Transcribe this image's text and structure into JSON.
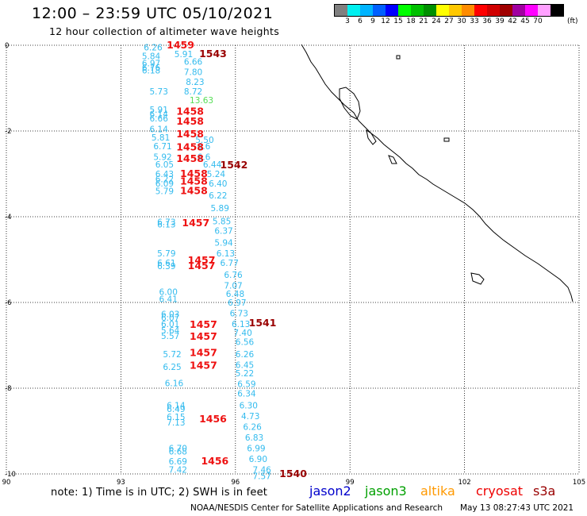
{
  "header": {
    "title": "12:00 – 23:59 UTC 05/10/2021",
    "subtitle": "12 hour collection of altimeter wave heights"
  },
  "legend": {
    "unit": "(ft)",
    "swatches": [
      {
        "label": "",
        "color": "#808080"
      },
      {
        "label": "3",
        "color": "#00f0f0"
      },
      {
        "label": "6",
        "color": "#00b4ff"
      },
      {
        "label": "9",
        "color": "#0060ff"
      },
      {
        "label": "12",
        "color": "#0000ff"
      },
      {
        "label": "15",
        "color": "#00ff00"
      },
      {
        "label": "18",
        "color": "#00c000"
      },
      {
        "label": "21",
        "color": "#009000"
      },
      {
        "label": "24",
        "color": "#ffff00"
      },
      {
        "label": "27",
        "color": "#ffc800"
      },
      {
        "label": "30",
        "color": "#ff8c00"
      },
      {
        "label": "33",
        "color": "#ff0000"
      },
      {
        "label": "36",
        "color": "#d00000"
      },
      {
        "label": "39",
        "color": "#a00000"
      },
      {
        "label": "42",
        "color": "#a000a0"
      },
      {
        "label": "45",
        "color": "#ff00ff"
      },
      {
        "label": "70",
        "color": "#ffa0ff"
      },
      {
        "label": "",
        "color": "#000000"
      }
    ]
  },
  "axes": {
    "x_ticks": [
      "90",
      "93",
      "96",
      "99",
      "102",
      "105"
    ],
    "y_ticks": [
      "0",
      "-2",
      "-4",
      "-6",
      "-8",
      "-10"
    ]
  },
  "observations": [
    {
      "lon": 93.6,
      "lat": -0.05,
      "text": "6.26",
      "color": "#33bbee"
    },
    {
      "lon": 93.55,
      "lat": -0.25,
      "text": "5.84",
      "color": "#33bbee"
    },
    {
      "lon": 93.55,
      "lat": -0.42,
      "text": "6.97",
      "color": "#33bbee"
    },
    {
      "lon": 93.55,
      "lat": -0.52,
      "text": "6.76",
      "color": "#33bbee"
    },
    {
      "lon": 93.55,
      "lat": -0.58,
      "text": "6.18",
      "color": "#33bbee"
    },
    {
      "lon": 94.4,
      "lat": -0.2,
      "text": "5.91",
      "color": "#33bbee"
    },
    {
      "lon": 94.65,
      "lat": -0.38,
      "text": "6.66",
      "color": "#33bbee"
    },
    {
      "lon": 94.65,
      "lat": -0.62,
      "text": "7.80",
      "color": "#33bbee"
    },
    {
      "lon": 94.7,
      "lat": -0.85,
      "text": "8.23",
      "color": "#33bbee"
    },
    {
      "lon": 93.75,
      "lat": -1.07,
      "text": "5.73",
      "color": "#33bbee"
    },
    {
      "lon": 94.65,
      "lat": -1.07,
      "text": "8.72",
      "color": "#33bbee"
    },
    {
      "lon": 94.8,
      "lat": -1.28,
      "text": "13.63",
      "color": "#55dd55"
    },
    {
      "lon": 93.75,
      "lat": -1.5,
      "text": "5.91",
      "color": "#33bbee"
    },
    {
      "lon": 93.75,
      "lat": -1.6,
      "text": "6.14",
      "color": "#33bbee"
    },
    {
      "lon": 93.75,
      "lat": -1.7,
      "text": "6.66",
      "color": "#33bbee"
    },
    {
      "lon": 93.75,
      "lat": -1.95,
      "text": "6.14",
      "color": "#33bbee"
    },
    {
      "lon": 93.8,
      "lat": -2.15,
      "text": "5.81",
      "color": "#33bbee"
    },
    {
      "lon": 93.85,
      "lat": -2.35,
      "text": "6.71",
      "color": "#33bbee"
    },
    {
      "lon": 94.95,
      "lat": -2.2,
      "text": "5.50",
      "color": "#33bbee"
    },
    {
      "lon": 95.0,
      "lat": -2.35,
      "text": "6.6",
      "color": "#33bbee"
    },
    {
      "lon": 93.85,
      "lat": -2.6,
      "text": "5.92",
      "color": "#33bbee"
    },
    {
      "lon": 95.0,
      "lat": -2.6,
      "text": "6.6",
      "color": "#33bbee"
    },
    {
      "lon": 93.9,
      "lat": -2.78,
      "text": "6.05",
      "color": "#33bbee"
    },
    {
      "lon": 95.15,
      "lat": -2.78,
      "text": "6.44",
      "color": "#33bbee"
    },
    {
      "lon": 93.9,
      "lat": -3.0,
      "text": "6.43",
      "color": "#33bbee"
    },
    {
      "lon": 95.25,
      "lat": -3.0,
      "text": "5.24",
      "color": "#33bbee"
    },
    {
      "lon": 93.9,
      "lat": -3.12,
      "text": "6.22",
      "color": "#33bbee"
    },
    {
      "lon": 93.9,
      "lat": -3.22,
      "text": "6.09",
      "color": "#33bbee"
    },
    {
      "lon": 95.3,
      "lat": -3.22,
      "text": "6.40",
      "color": "#33bbee"
    },
    {
      "lon": 93.9,
      "lat": -3.4,
      "text": "5.79",
      "color": "#33bbee"
    },
    {
      "lon": 95.3,
      "lat": -3.5,
      "text": "6.22",
      "color": "#33bbee"
    },
    {
      "lon": 95.35,
      "lat": -3.8,
      "text": "5.89",
      "color": "#33bbee"
    },
    {
      "lon": 93.95,
      "lat": -4.12,
      "text": "6.73",
      "color": "#33bbee"
    },
    {
      "lon": 93.95,
      "lat": -4.18,
      "text": "6.13",
      "color": "#33bbee"
    },
    {
      "lon": 95.4,
      "lat": -4.1,
      "text": "5.85",
      "color": "#33bbee"
    },
    {
      "lon": 95.45,
      "lat": -4.32,
      "text": "6.37",
      "color": "#33bbee"
    },
    {
      "lon": 95.45,
      "lat": -4.6,
      "text": "5.94",
      "color": "#33bbee"
    },
    {
      "lon": 93.95,
      "lat": -4.85,
      "text": "5.79",
      "color": "#33bbee"
    },
    {
      "lon": 95.5,
      "lat": -4.85,
      "text": "6.13",
      "color": "#33bbee"
    },
    {
      "lon": 93.95,
      "lat": -5.07,
      "text": "6.61",
      "color": "#33bbee"
    },
    {
      "lon": 93.95,
      "lat": -5.15,
      "text": "6.39",
      "color": "#33bbee"
    },
    {
      "lon": 95.6,
      "lat": -5.07,
      "text": "6.77",
      "color": "#33bbee"
    },
    {
      "lon": 95.7,
      "lat": -5.35,
      "text": "6.76",
      "color": "#33bbee"
    },
    {
      "lon": 95.7,
      "lat": -5.6,
      "text": "7.07",
      "color": "#33bbee"
    },
    {
      "lon": 94.0,
      "lat": -5.75,
      "text": "6.00",
      "color": "#33bbee"
    },
    {
      "lon": 95.75,
      "lat": -5.8,
      "text": "6.48",
      "color": "#33bbee"
    },
    {
      "lon": 94.0,
      "lat": -5.92,
      "text": "6.41",
      "color": "#33bbee"
    },
    {
      "lon": 95.8,
      "lat": -6.0,
      "text": "6.97",
      "color": "#33bbee"
    },
    {
      "lon": 94.05,
      "lat": -6.27,
      "text": "6.03",
      "color": "#33bbee"
    },
    {
      "lon": 94.05,
      "lat": -6.35,
      "text": "6.07",
      "color": "#33bbee"
    },
    {
      "lon": 95.85,
      "lat": -6.25,
      "text": "6.73",
      "color": "#33bbee"
    },
    {
      "lon": 94.05,
      "lat": -6.5,
      "text": "6.01",
      "color": "#33bbee"
    },
    {
      "lon": 95.9,
      "lat": -6.5,
      "text": "6.13",
      "color": "#33bbee"
    },
    {
      "lon": 94.05,
      "lat": -6.65,
      "text": "5.64",
      "color": "#33bbee"
    },
    {
      "lon": 95.95,
      "lat": -6.7,
      "text": "7.40",
      "color": "#33bbee"
    },
    {
      "lon": 94.05,
      "lat": -6.78,
      "text": "5.57",
      "color": "#33bbee"
    },
    {
      "lon": 96.0,
      "lat": -6.92,
      "text": "6.56",
      "color": "#33bbee"
    },
    {
      "lon": 94.1,
      "lat": -7.2,
      "text": "5.72",
      "color": "#33bbee"
    },
    {
      "lon": 96.0,
      "lat": -7.2,
      "text": "6.26",
      "color": "#33bbee"
    },
    {
      "lon": 96.0,
      "lat": -7.45,
      "text": "6.45",
      "color": "#33bbee"
    },
    {
      "lon": 94.1,
      "lat": -7.5,
      "text": "6.25",
      "color": "#33bbee"
    },
    {
      "lon": 96.0,
      "lat": -7.65,
      "text": "5.22",
      "color": "#33bbee"
    },
    {
      "lon": 94.15,
      "lat": -7.88,
      "text": "6.16",
      "color": "#33bbee"
    },
    {
      "lon": 96.05,
      "lat": -7.9,
      "text": "6.59",
      "color": "#33bbee"
    },
    {
      "lon": 96.05,
      "lat": -8.12,
      "text": "6.34",
      "color": "#33bbee"
    },
    {
      "lon": 94.2,
      "lat": -8.4,
      "text": "6.14",
      "color": "#33bbee"
    },
    {
      "lon": 94.2,
      "lat": -8.48,
      "text": "6.49",
      "color": "#33bbee"
    },
    {
      "lon": 96.1,
      "lat": -8.4,
      "text": "6.30",
      "color": "#33bbee"
    },
    {
      "lon": 94.2,
      "lat": -8.67,
      "text": "6.15",
      "color": "#33bbee"
    },
    {
      "lon": 96.15,
      "lat": -8.65,
      "text": "4.73",
      "color": "#33bbee"
    },
    {
      "lon": 94.2,
      "lat": -8.8,
      "text": "7.13",
      "color": "#33bbee"
    },
    {
      "lon": 96.2,
      "lat": -8.9,
      "text": "6.26",
      "color": "#33bbee"
    },
    {
      "lon": 96.25,
      "lat": -9.15,
      "text": "6.83",
      "color": "#33bbee"
    },
    {
      "lon": 94.25,
      "lat": -9.4,
      "text": "6.70",
      "color": "#33bbee"
    },
    {
      "lon": 94.25,
      "lat": -9.47,
      "text": "6.68",
      "color": "#33bbee"
    },
    {
      "lon": 96.3,
      "lat": -9.4,
      "text": "6.99",
      "color": "#33bbee"
    },
    {
      "lon": 94.25,
      "lat": -9.7,
      "text": "6.69",
      "color": "#33bbee"
    },
    {
      "lon": 96.35,
      "lat": -9.65,
      "text": "6.90",
      "color": "#33bbee"
    },
    {
      "lon": 94.25,
      "lat": -9.9,
      "text": "7.42",
      "color": "#33bbee"
    },
    {
      "lon": 96.45,
      "lat": -9.9,
      "text": "7.46",
      "color": "#33bbee"
    },
    {
      "lon": 96.45,
      "lat": -10.05,
      "text": "7.57",
      "color": "#33bbee"
    }
  ],
  "time_labels": [
    {
      "lon": 94.2,
      "lat": 0.0,
      "text": "1459",
      "color": "#ee1111"
    },
    {
      "lon": 95.05,
      "lat": -0.2,
      "text": "1543",
      "color": "#990000"
    },
    {
      "lon": 94.45,
      "lat": -1.55,
      "text": "1458",
      "color": "#ee1111"
    },
    {
      "lon": 94.45,
      "lat": -1.78,
      "text": "1458",
      "color": "#ee1111"
    },
    {
      "lon": 94.45,
      "lat": -2.07,
      "text": "1458",
      "color": "#ee1111"
    },
    {
      "lon": 94.45,
      "lat": -2.38,
      "text": "1458",
      "color": "#ee1111"
    },
    {
      "lon": 94.45,
      "lat": -2.65,
      "text": "1458",
      "color": "#ee1111"
    },
    {
      "lon": 95.6,
      "lat": -2.8,
      "text": "1542",
      "color": "#990000"
    },
    {
      "lon": 94.55,
      "lat": -3.0,
      "text": "1458",
      "color": "#ee1111"
    },
    {
      "lon": 94.55,
      "lat": -3.18,
      "text": "1458",
      "color": "#ee1111"
    },
    {
      "lon": 94.55,
      "lat": -3.4,
      "text": "1458",
      "color": "#ee1111"
    },
    {
      "lon": 94.6,
      "lat": -4.15,
      "text": "1457",
      "color": "#ee1111"
    },
    {
      "lon": 94.75,
      "lat": -5.02,
      "text": "1457",
      "color": "#ee1111"
    },
    {
      "lon": 94.75,
      "lat": -5.15,
      "text": "1457",
      "color": "#ee1111"
    },
    {
      "lon": 94.8,
      "lat": -6.52,
      "text": "1457",
      "color": "#ee1111"
    },
    {
      "lon": 96.35,
      "lat": -6.48,
      "text": "1541",
      "color": "#990000"
    },
    {
      "lon": 94.8,
      "lat": -6.8,
      "text": "1457",
      "color": "#ee1111"
    },
    {
      "lon": 94.8,
      "lat": -7.18,
      "text": "1457",
      "color": "#ee1111"
    },
    {
      "lon": 94.8,
      "lat": -7.47,
      "text": "1457",
      "color": "#ee1111"
    },
    {
      "lon": 95.05,
      "lat": -8.72,
      "text": "1456",
      "color": "#ee1111"
    },
    {
      "lon": 95.1,
      "lat": -9.7,
      "text": "1456",
      "color": "#ee1111"
    },
    {
      "lon": 97.15,
      "lat": -10.0,
      "text": "1540",
      "color": "#990000"
    }
  ],
  "footer": {
    "note": "note:  1) Time is in UTC;  2) SWH is in feet",
    "satellites": [
      {
        "name": "jason2",
        "color": "#0000cc"
      },
      {
        "name": "jason3",
        "color": "#00a000"
      },
      {
        "name": "altika",
        "color": "#ff9900"
      },
      {
        "name": "cryosat",
        "color": "#ee0000"
      },
      {
        "name": "s3a",
        "color": "#990000"
      }
    ],
    "credit": "NOAA/NESDIS Center for Satellite Applications and Research",
    "timestamp": "May 13 08:27:43 UTC 2021"
  }
}
